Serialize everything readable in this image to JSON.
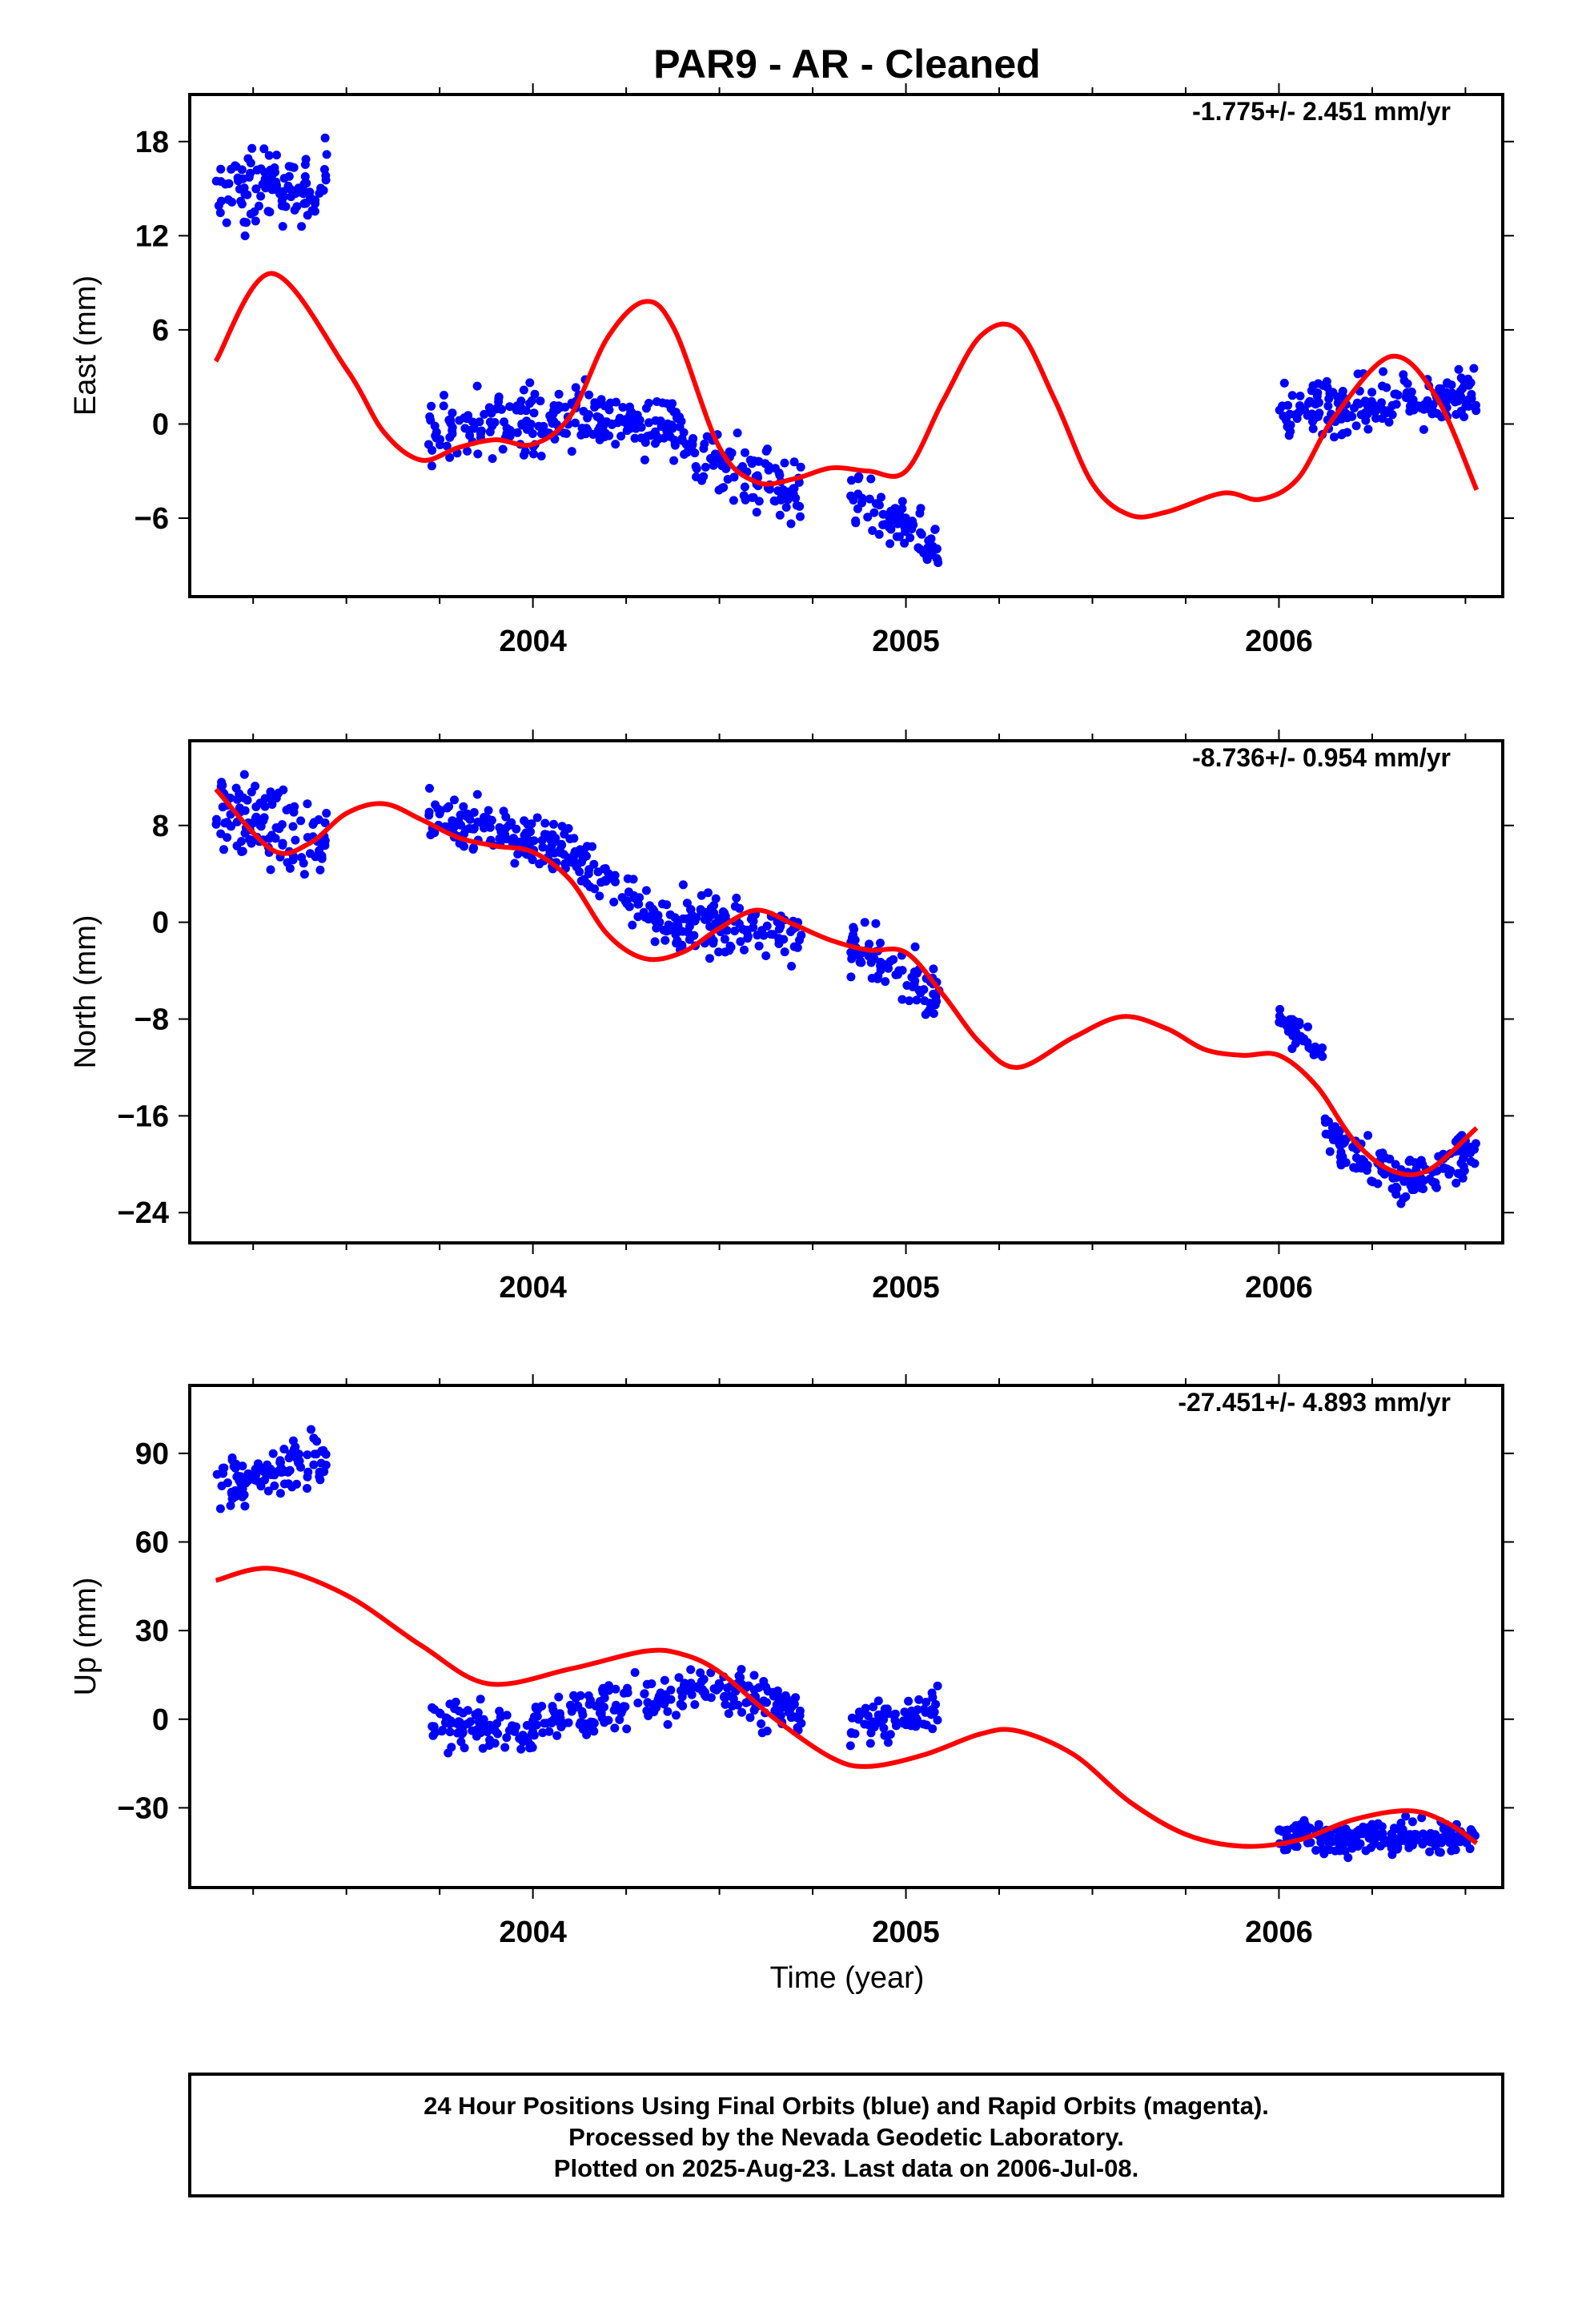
{
  "title": "PAR9  - AR - Cleaned",
  "xlabel": "Time (year)",
  "footer": {
    "line1": "24 Hour Positions Using Final Orbits (blue) and Rapid Orbits (magenta).",
    "line2": "Processed by the Nevada Geodetic Laboratory.",
    "line3": "Plotted on 2025-Aug-23. Last data on 2006-Jul-08."
  },
  "colors": {
    "points": "#0000ff",
    "fit": "#ff0000",
    "frame": "#000000"
  },
  "chart_data": [
    {
      "type": "scatter",
      "name": "east",
      "ylabel": "East (mm)",
      "rate": "-1.775+/- 2.451 mm/yr",
      "xlim": [
        2003.08,
        2006.6
      ],
      "ylim": [
        -11,
        21
      ],
      "yticks": [
        -6,
        0,
        6,
        12,
        18
      ],
      "xticks": [
        2004,
        2005,
        2006
      ],
      "points": {
        "segments": [
          {
            "x": [
              2003.15,
              2003.45
            ],
            "y_start": 14.5,
            "y_end": 15.5,
            "amp": 2.3,
            "count": 110
          },
          {
            "x": [
              2003.72,
              2004.0
            ],
            "y_start": -0.5,
            "y_end": 0.5,
            "amp": 2.0,
            "count": 90
          },
          {
            "x": [
              2004.0,
              2004.4
            ],
            "y_start": 0.2,
            "y_end": 0.2,
            "amp": 1.9,
            "count": 140
          },
          {
            "x": [
              2004.4,
              2004.72
            ],
            "y_start": -1.5,
            "y_end": -4.5,
            "amp": 2.0,
            "count": 110
          },
          {
            "x": [
              2004.85,
              2005.09
            ],
            "y_start": -4.8,
            "y_end": -8.0,
            "amp": 1.6,
            "count": 80
          },
          {
            "x": [
              2006.0,
              2006.53
            ],
            "y_start": 0.5,
            "y_end": 2.0,
            "amp": 1.6,
            "count": 190
          }
        ]
      },
      "fit": {
        "x": [
          2003.15,
          2003.3,
          2003.5,
          2003.6,
          2003.7,
          2003.8,
          2003.9,
          2004.0,
          2004.1,
          2004.2,
          2004.3,
          2004.38,
          2004.5,
          2004.6,
          2004.7,
          2004.8,
          2004.9,
          2005.0,
          2005.1,
          2005.2,
          2005.3,
          2005.4,
          2005.5,
          2005.6,
          2005.7,
          2005.85,
          2005.95,
          2006.05,
          2006.15,
          2006.3,
          2006.42,
          2006.53
        ],
        "y": [
          4,
          9.6,
          3.5,
          -0.5,
          -2.3,
          -1.5,
          -1.0,
          -1.3,
          0.5,
          5.5,
          7.8,
          6.0,
          -1.5,
          -3.7,
          -3.5,
          -2.8,
          -3.0,
          -3.0,
          1.5,
          5.6,
          6.0,
          1.5,
          -3.8,
          -5.8,
          -5.6,
          -4.4,
          -4.8,
          -3.5,
          0.5,
          4.3,
          1.8,
          -4.2
        ]
      }
    },
    {
      "type": "scatter",
      "name": "north",
      "ylabel": "North (mm)",
      "rate": "-8.736+/- 0.954 mm/yr",
      "xlim": [
        2003.08,
        2006.6
      ],
      "ylim": [
        -26.5,
        15
      ],
      "yticks": [
        -24,
        -16,
        -8,
        0,
        8
      ],
      "xticks": [
        2004,
        2005,
        2006
      ],
      "points": {
        "segments": [
          {
            "x": [
              2003.15,
              2003.45
            ],
            "y_start": 9.5,
            "y_end": 6.5,
            "amp": 3.0,
            "count": 110
          },
          {
            "x": [
              2003.72,
              2004.1
            ],
            "y_start": 9.0,
            "y_end": 6.0,
            "amp": 2.2,
            "count": 130
          },
          {
            "x": [
              2004.1,
              2004.4
            ],
            "y_start": 5.5,
            "y_end": -1.0,
            "amp": 2.0,
            "count": 90
          },
          {
            "x": [
              2004.4,
              2004.72
            ],
            "y_start": 0.5,
            "y_end": -1.5,
            "amp": 2.2,
            "count": 110
          },
          {
            "x": [
              2004.85,
              2005.09
            ],
            "y_start": -2.0,
            "y_end": -6.0,
            "amp": 2.0,
            "count": 80
          },
          {
            "x": [
              2006.0,
              2006.12
            ],
            "y_start": -8.0,
            "y_end": -11.0,
            "amp": 1.2,
            "count": 40
          },
          {
            "x": [
              2006.12,
              2006.3
            ],
            "y_start": -17.0,
            "y_end": -21.0,
            "amp": 1.6,
            "count": 60
          },
          {
            "x": [
              2006.3,
              2006.53
            ],
            "y_start": -22.0,
            "y_end": -18.5,
            "amp": 1.8,
            "count": 90
          }
        ]
      },
      "fit": {
        "x": [
          2003.15,
          2003.3,
          2003.4,
          2003.5,
          2003.6,
          2003.7,
          2003.8,
          2003.9,
          2004.0,
          2004.1,
          2004.2,
          2004.3,
          2004.4,
          2004.5,
          2004.6,
          2004.7,
          2004.8,
          2004.9,
          2005.0,
          2005.1,
          2005.2,
          2005.3,
          2005.45,
          2005.58,
          2005.7,
          2005.8,
          2005.9,
          2006.0,
          2006.1,
          2006.2,
          2006.3,
          2006.4,
          2006.53
        ],
        "y": [
          11,
          6,
          6.5,
          9,
          9.8,
          8.5,
          7,
          6.3,
          5.8,
          3.5,
          -1.0,
          -3.0,
          -2.5,
          -0.5,
          1.0,
          -0.2,
          -1.5,
          -2.3,
          -2.5,
          -6.0,
          -10.0,
          -12.0,
          -9.5,
          -7.8,
          -8.8,
          -10.5,
          -11.0,
          -11.0,
          -13.5,
          -18.0,
          -20.5,
          -20.5,
          -17.0
        ]
      }
    },
    {
      "type": "scatter",
      "name": "up",
      "ylabel": "Up (mm)",
      "rate": "-27.451+/- 4.893 mm/yr",
      "xlim": [
        2003.08,
        2006.6
      ],
      "ylim": [
        -57,
        113
      ],
      "yticks": [
        -30,
        0,
        30,
        60,
        90
      ],
      "xticks": [
        2004,
        2005,
        2006
      ],
      "points": {
        "segments": [
          {
            "x": [
              2003.15,
              2003.45
            ],
            "y_start": 78,
            "y_end": 88,
            "amp": 9,
            "count": 110
          },
          {
            "x": [
              2003.72,
              2004.0
            ],
            "y_start": -1,
            "y_end": -6,
            "amp": 7,
            "count": 90
          },
          {
            "x": [
              2004.0,
              2004.4
            ],
            "y_start": 0,
            "y_end": 8,
            "amp": 7,
            "count": 120
          },
          {
            "x": [
              2004.4,
              2004.72
            ],
            "y_start": 12,
            "y_end": 3,
            "amp": 8,
            "count": 110
          },
          {
            "x": [
              2004.85,
              2005.09
            ],
            "y_start": -2,
            "y_end": 3,
            "amp": 7,
            "count": 70
          },
          {
            "x": [
              2006.0,
              2006.53
            ],
            "y_start": -40,
            "y_end": -40,
            "amp": 5,
            "count": 200
          }
        ]
      },
      "fit": {
        "x": [
          2003.15,
          2003.3,
          2003.5,
          2003.7,
          2003.88,
          2004.1,
          2004.3,
          2004.4,
          2004.5,
          2004.65,
          2004.8,
          2004.9,
          2005.05,
          2005.2,
          2005.3,
          2005.45,
          2005.6,
          2005.75,
          2005.9,
          2006.05,
          2006.2,
          2006.35,
          2006.45,
          2006.53
        ],
        "y": [
          47,
          51,
          42,
          25,
          12,
          17,
          23,
          22,
          16,
          0,
          -13,
          -16,
          -12,
          -5,
          -4,
          -12,
          -28,
          -39,
          -43,
          -41,
          -34,
          -31,
          -35,
          -42
        ]
      }
    }
  ]
}
